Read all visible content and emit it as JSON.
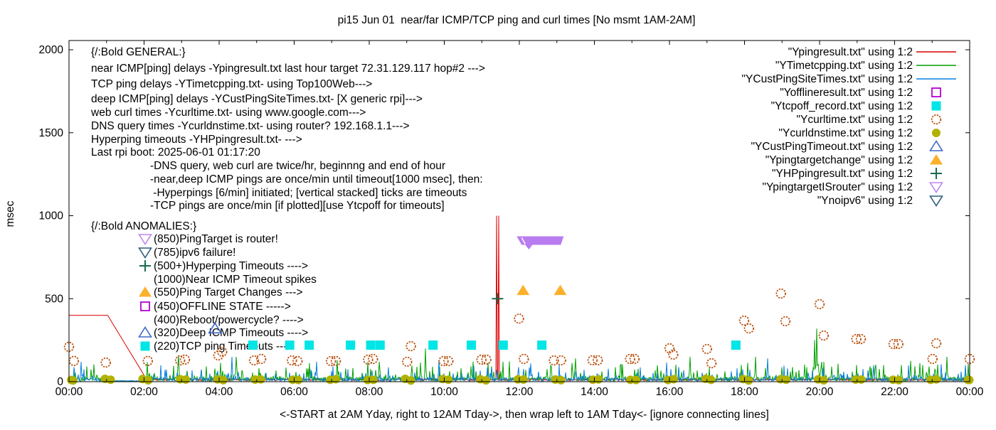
{
  "title": "pi15 Jun 01  near/far ICMP/TCP ping and curl times [No msmt 1AM-2AM]",
  "y_axis": {
    "label": "msec",
    "ticks": [
      0,
      500,
      1000,
      1500,
      2000
    ],
    "max": 2000
  },
  "x_axis": {
    "tick_labels": [
      "00:00",
      "02:00",
      "04:00",
      "06:00",
      "08:00",
      "10:00",
      "12:00",
      "14:00",
      "16:00",
      "18:00",
      "20:00",
      "22:00",
      "00:00"
    ],
    "note": "<-START at 2AM Yday, right to 12AM Tday->, then wrap left to 1AM Tday<- [ignore connecting lines]"
  },
  "legend": [
    {
      "label": "\"Ypingresult.txt\" using 1:2",
      "marker": "line",
      "color": "#dc0000"
    },
    {
      "label": "\"YTimetcpping.txt\" using 1:2",
      "marker": "line",
      "color": "#00a000"
    },
    {
      "label": "\"YCustPingSiteTimes.txt\" using 1:2",
      "marker": "line",
      "color": "#0a80e0"
    },
    {
      "label": "\"Yofflineresult.txt\" using 1:2",
      "marker": "square-open",
      "color": "#b400d3"
    },
    {
      "label": "\"Ytcpoff_record.txt\" using 1:2",
      "marker": "square-filled",
      "color": "#00e5e5"
    },
    {
      "label": "\"Ycurltime.txt\" using 1:2",
      "marker": "circle-open",
      "color": "#bb500e"
    },
    {
      "label": "\"Ycurldnstime.txt\" using 1:2",
      "marker": "circle-filled",
      "color": "#b2b200"
    },
    {
      "label": "\"YCustPingTimeout.txt\" using 1:2",
      "marker": "triangle-up-open",
      "color": "#3e68c8"
    },
    {
      "label": "\"Ypingtargetchange\" using 1:2",
      "marker": "triangle-up-filled",
      "color": "#fbb12c"
    },
    {
      "label": "\"YHPpingresult.txt\" using 1:2",
      "marker": "plus",
      "color": "#156b50"
    },
    {
      "label": "\"YpingtargetISrouter\" using 1:2",
      "marker": "triangle-down-open",
      "color": "#bd85f2"
    },
    {
      "label": "\"Ynoipv6\" using 1:2",
      "marker": "triangle-down-open",
      "color": "#2d5f7a"
    }
  ],
  "general_text": {
    "heading": "{/:Bold GENERAL:}",
    "lines": [
      "near ICMP[ping] delays -Ypingresult.txt last hour target 72.31.129.117 hop#2 --->",
      "TCP ping delays -YTimetcpping.txt- using Top100Web--->",
      "deep ICMP[ping] delays -YCustPingSiteTimes.txt- [X generic rpi]--->",
      "web curl times -Ycurltime.txt- using www.google.com--->",
      "DNS query times -Ycurldnstime.txt- using router? 192.168.1.1--->",
      "Hyperping timeouts -YHPpingresult.txt- --->",
      "Last rpi boot: 2025-06-01 01:17:20"
    ],
    "indented_lines": [
      "-DNS query, web curl are twice/hr, beginnng and end of hour",
      "-near,deep ICMP pings are once/min until timeout[1000 msec], then:",
      " -Hyperpings [6/min] initiated; [vertical stacked] ticks are timeouts",
      "-TCP pings are once/min [if plotted][use Ytcpoff for timeouts]"
    ]
  },
  "anomalies": {
    "heading": "{/:Bold ANOMALIES:}",
    "items": [
      {
        "marker": "triangle-down-open",
        "color": "#bd85f2",
        "text": "(850)PingTarget is router!"
      },
      {
        "marker": "triangle-down-open",
        "color": "#2d5f7a",
        "text": "(785)ipv6 failure!"
      },
      {
        "marker": "plus",
        "color": "#156b50",
        "text": "(500+)Hyperping Timeouts ---->"
      },
      {
        "marker": "none",
        "color": "",
        "text": "(1000)Near ICMP Timeout spikes"
      },
      {
        "marker": "triangle-up-filled",
        "color": "#fbb12c",
        "text": "(550)Ping Target Changes --->"
      },
      {
        "marker": "square-open",
        "color": "#b400d3",
        "text": "(450)OFFLINE STATE ----->"
      },
      {
        "marker": "none",
        "color": "",
        "text": "(400)Reboot/powercycle? ---->"
      },
      {
        "marker": "triangle-up-open",
        "color": "#3e68c8",
        "text": "(320)Deep ICMP Timeouts ---->"
      },
      {
        "marker": "square-filled",
        "color": "#00e5e5",
        "text": "(220)TCP ping Timeouts --->"
      }
    ]
  },
  "chart_data": {
    "type": "line",
    "x_range_hours": [
      0,
      24
    ],
    "ylim": [
      0,
      2000
    ],
    "ylabel": "msec",
    "grid": false,
    "legend_position": "top-right",
    "series": [
      {
        "name": "Ypingresult.txt (near ICMP ping)",
        "type": "line",
        "color": "#dc0000",
        "keypoints": [
          [
            0,
            400
          ],
          [
            1.05,
            400
          ],
          [
            2.05,
            20
          ],
          [
            11.4,
            1000
          ],
          [
            11.45,
            1000
          ],
          [
            24,
            15
          ]
        ],
        "baseline": [
          6,
          18
        ],
        "note": "400 msec 00:00-01:03, connecting line down to ~20 by 02:03 (no msmt 1AM-2AM), noisy 6-18 msec after, twin 1000-msec timeout spikes ~11:24/11:27"
      },
      {
        "name": "YTimetcpping.txt (TCP ping)",
        "type": "line",
        "color": "#00a000",
        "baseline": [
          3,
          130
        ],
        "spikes": [
          [
            2.92,
            160
          ],
          [
            4.45,
            150
          ],
          [
            7.15,
            130
          ],
          [
            9.5,
            200
          ],
          [
            13.5,
            140
          ],
          [
            16.55,
            150
          ],
          [
            18.3,
            150
          ],
          [
            19.87,
            250
          ],
          [
            19.92,
            320
          ],
          [
            22.42,
            125
          ],
          [
            23.4,
            150
          ]
        ]
      },
      {
        "name": "YCustPingSiteTimes.txt (deep ICMP ping)",
        "type": "line",
        "color": "#0a80e0",
        "baseline": [
          3,
          105
        ],
        "spikes": [
          [
            0.33,
            120
          ],
          [
            4.35,
            150
          ],
          [
            6.6,
            120
          ],
          [
            9.85,
            130
          ],
          [
            12.3,
            110
          ],
          [
            15.92,
            115
          ],
          [
            18.62,
            140
          ],
          [
            21.45,
            100
          ],
          [
            23.25,
            105
          ]
        ]
      }
    ],
    "points": [
      {
        "name": "Ycurltime.txt (web curl times)",
        "marker": "circle-open",
        "color": "#bb500e",
        "data": [
          [
            0,
            210
          ],
          [
            0.13,
            125
          ],
          [
            0.98,
            115
          ],
          [
            2.1,
            125
          ],
          [
            2.96,
            128
          ],
          [
            3.09,
            133
          ],
          [
            3.98,
            158
          ],
          [
            4.08,
            180
          ],
          [
            4.93,
            128
          ],
          [
            5.12,
            137
          ],
          [
            5.94,
            128
          ],
          [
            6.09,
            124
          ],
          [
            6.98,
            124
          ],
          [
            7.11,
            124
          ],
          [
            7.97,
            133
          ],
          [
            8.1,
            137
          ],
          [
            9.01,
            120
          ],
          [
            9.11,
            214
          ],
          [
            9.98,
            124
          ],
          [
            10.11,
            124
          ],
          [
            10.99,
            133
          ],
          [
            11.12,
            133
          ],
          [
            11.99,
            380
          ],
          [
            12.12,
            137
          ],
          [
            12.92,
            128
          ],
          [
            13.11,
            128
          ],
          [
            13.95,
            129
          ],
          [
            14.09,
            129
          ],
          [
            14.95,
            137
          ],
          [
            15.07,
            137
          ],
          [
            16.0,
            201
          ],
          [
            16.1,
            163
          ],
          [
            17.0,
            197
          ],
          [
            17.12,
            111
          ],
          [
            17.99,
            368
          ],
          [
            18.12,
            321
          ],
          [
            18.97,
            531
          ],
          [
            19.09,
            364
          ],
          [
            20.0,
            467
          ],
          [
            20.11,
            278
          ],
          [
            20.98,
            257
          ],
          [
            21.1,
            257
          ],
          [
            21.97,
            227
          ],
          [
            22.1,
            227
          ],
          [
            23.01,
            137
          ],
          [
            23.11,
            231
          ],
          [
            24,
            137
          ]
        ]
      },
      {
        "name": "Ycurldnstime.txt (DNS query times)",
        "marker": "circle-filled",
        "color": "#b2b200",
        "hourly_pairs_hours": [
          0,
          1,
          2,
          3,
          4,
          5,
          6,
          7,
          8,
          9,
          10,
          11,
          12,
          13,
          14,
          15,
          16,
          17,
          18,
          19,
          20,
          21,
          22,
          23,
          24
        ],
        "typical_value_msec": 12
      },
      {
        "name": "Ytcpoff_record.txt (TCP ping timeouts)",
        "marker": "square-filled",
        "color": "#00e5e5",
        "value": 220,
        "times": [
          4.9,
          5.88,
          6.4,
          7.5,
          8.04,
          8.29,
          9.7,
          10.72,
          11.57,
          12.6,
          17.77
        ]
      },
      {
        "name": "YCustPingTimeout.txt (deep ICMP timeouts)",
        "marker": "triangle-up-open",
        "color": "#3e68c8",
        "value": 320,
        "times": [
          3.89
        ]
      },
      {
        "name": "Ypingtargetchange (ping target changes)",
        "marker": "triangle-up-filled",
        "color": "#fbb12c",
        "value": 550,
        "times": [
          12.1,
          13.09
        ]
      },
      {
        "name": "YHPpingresult.txt (hyperping timeouts)",
        "marker": "plus",
        "color": "#156b50",
        "value": 500,
        "times": [
          11.42
        ]
      },
      {
        "name": "YpingtargetISrouter (ping target is router band)",
        "marker": "triangle-down-band",
        "color": "#b87cf0",
        "value": 850,
        "time_range": [
          11.93,
          13.18
        ]
      },
      {
        "name": "Yofflineresult.txt (offline state)",
        "marker": "square-open",
        "color": "#b400d3",
        "value": 450,
        "times": []
      },
      {
        "name": "Ynoipv6 (ipv6 failure)",
        "marker": "triangle-down-open",
        "color": "#2d5f7a",
        "value": 785,
        "times": []
      }
    ]
  }
}
